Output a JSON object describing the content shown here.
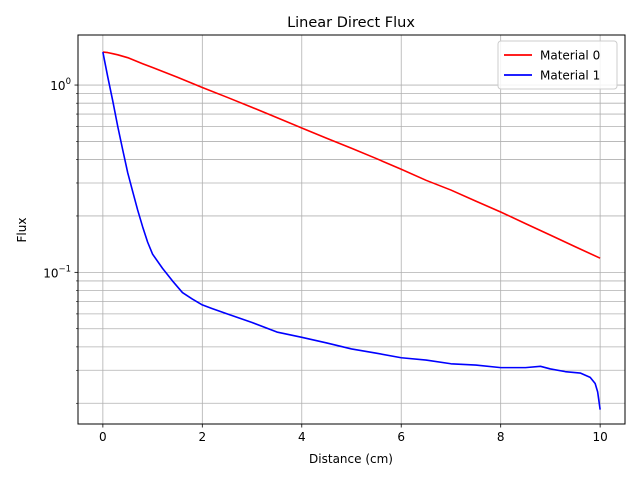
{
  "chart_data": {
    "type": "line",
    "title": "Linear Direct Flux",
    "xlabel": "Distance (cm)",
    "ylabel": "Flux",
    "xlim": [
      -0.5,
      10.5
    ],
    "ylim": [
      0.0155,
      1.85
    ],
    "yscale": "log",
    "grid": true,
    "legend_position": "top-right",
    "x_ticks": [
      0,
      2,
      4,
      6,
      8,
      10
    ],
    "x_tick_labels": [
      "0",
      "2",
      "4",
      "6",
      "8",
      "10"
    ],
    "y_major_ticks": [
      0.1,
      1
    ],
    "y_tick_labels": [
      "10^{-1}",
      "10^{0}"
    ],
    "series": [
      {
        "name": "Material 0",
        "color": "#ff0000",
        "x": [
          0,
          0.1,
          0.2,
          0.3,
          0.5,
          0.8,
          1.0,
          1.5,
          2.0,
          2.5,
          3.0,
          3.5,
          4.0,
          4.5,
          5.0,
          5.5,
          6.0,
          6.5,
          7.0,
          7.5,
          8.0,
          8.5,
          9.0,
          9.5,
          10.0
        ],
        "y": [
          1.5,
          1.49,
          1.47,
          1.45,
          1.4,
          1.3,
          1.24,
          1.1,
          0.97,
          0.86,
          0.76,
          0.67,
          0.59,
          0.52,
          0.46,
          0.405,
          0.355,
          0.31,
          0.275,
          0.24,
          0.21,
          0.182,
          0.158,
          0.137,
          0.119
        ]
      },
      {
        "name": "Material 1",
        "color": "#0000ff",
        "x": [
          0,
          0.1,
          0.2,
          0.3,
          0.4,
          0.5,
          0.6,
          0.7,
          0.8,
          0.9,
          1.0,
          1.2,
          1.4,
          1.6,
          1.8,
          2.0,
          2.2,
          2.5,
          3.0,
          3.5,
          4.0,
          4.5,
          5.0,
          5.5,
          6.0,
          6.5,
          7.0,
          7.5,
          8.0,
          8.5,
          8.8,
          9.0,
          9.3,
          9.6,
          9.8,
          9.9,
          9.95,
          10.0
        ],
        "y": [
          1.5,
          1.1,
          0.82,
          0.6,
          0.45,
          0.34,
          0.27,
          0.215,
          0.175,
          0.145,
          0.125,
          0.105,
          0.09,
          0.078,
          0.072,
          0.067,
          0.064,
          0.06,
          0.054,
          0.048,
          0.045,
          0.042,
          0.039,
          0.037,
          0.035,
          0.034,
          0.0325,
          0.032,
          0.031,
          0.031,
          0.0315,
          0.0305,
          0.0295,
          0.029,
          0.0275,
          0.0255,
          0.023,
          0.0185
        ]
      }
    ]
  }
}
